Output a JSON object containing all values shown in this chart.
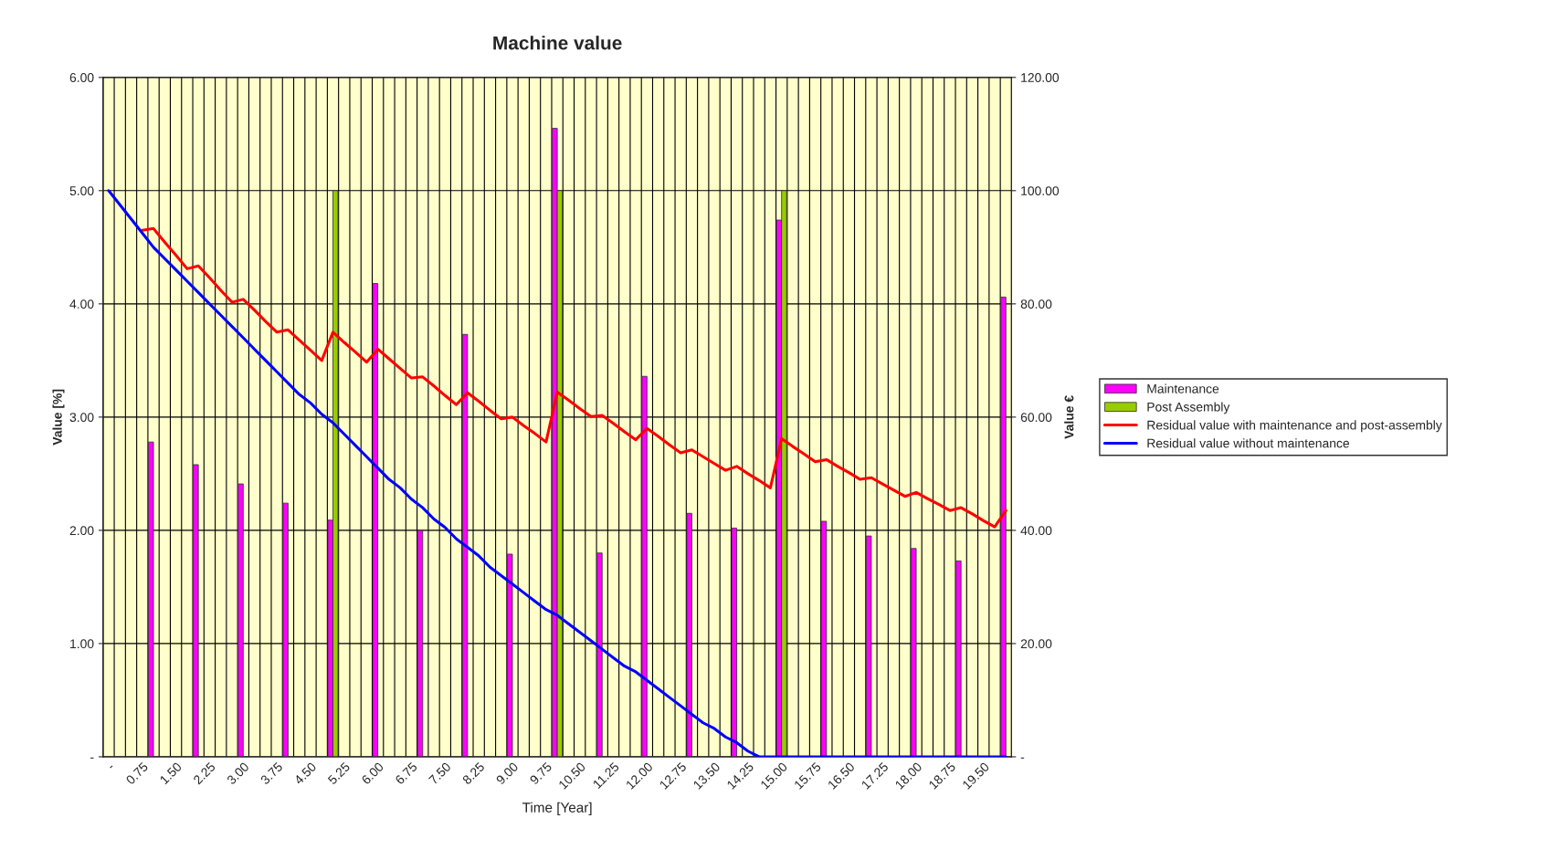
{
  "chart_data": {
    "type": "bar",
    "title": "Machine value",
    "xlabel": "Time [Year]",
    "ylabel": "Value [%]",
    "y2label": "Value €",
    "categories": [
      "-",
      null,
      null,
      "0.75",
      null,
      null,
      "1.50",
      null,
      null,
      "2.25",
      null,
      null,
      "3.00",
      null,
      null,
      "3.75",
      null,
      null,
      "4.50",
      null,
      null,
      "5.25",
      null,
      null,
      "6.00",
      null,
      null,
      "6.75",
      null,
      null,
      "7.50",
      null,
      null,
      "8.25",
      null,
      null,
      "9.00",
      null,
      null,
      "9.75",
      null,
      null,
      "10.50",
      null,
      null,
      "11.25",
      null,
      null,
      "12.00",
      null,
      null,
      "12.75",
      null,
      null,
      "13.50",
      null,
      null,
      "14.25",
      null,
      null,
      "15.00",
      null,
      null,
      "15.75",
      null,
      null,
      "16.50",
      null,
      null,
      "17.25",
      null,
      null,
      "18.00",
      null,
      null,
      "18.75",
      null,
      null,
      "19.50",
      null,
      null
    ],
    "series": [
      {
        "name": "Maintenance",
        "color": "#ff00ff",
        "values": [
          null,
          null,
          null,
          null,
          2.78,
          null,
          null,
          null,
          2.58,
          null,
          null,
          null,
          2.41,
          null,
          null,
          null,
          2.24,
          null,
          null,
          null,
          2.09,
          null,
          null,
          null,
          4.18,
          null,
          null,
          null,
          2.0,
          null,
          null,
          null,
          3.73,
          null,
          null,
          null,
          1.79,
          null,
          null,
          null,
          5.55,
          null,
          null,
          null,
          1.8,
          null,
          null,
          null,
          3.36,
          null,
          null,
          null,
          2.15,
          null,
          null,
          null,
          2.02,
          null,
          null,
          null,
          4.74,
          null,
          null,
          null,
          2.08,
          null,
          null,
          null,
          1.95,
          null,
          null,
          null,
          1.84,
          null,
          null,
          null,
          1.73,
          null,
          null,
          null,
          4.06
        ]
      },
      {
        "name": "Post Assembly",
        "color": "#99cc00",
        "values": [
          null,
          null,
          null,
          null,
          null,
          null,
          null,
          null,
          null,
          null,
          null,
          null,
          null,
          null,
          null,
          null,
          null,
          null,
          null,
          null,
          5.0,
          null,
          null,
          null,
          null,
          null,
          null,
          null,
          null,
          null,
          null,
          null,
          null,
          null,
          null,
          null,
          null,
          null,
          null,
          null,
          5.0,
          null,
          null,
          null,
          null,
          null,
          null,
          null,
          null,
          null,
          null,
          null,
          null,
          null,
          null,
          null,
          null,
          null,
          null,
          null,
          5.0,
          null,
          null,
          null,
          null,
          null,
          null,
          null,
          null,
          null,
          null,
          null,
          null,
          null,
          null,
          null,
          null,
          null,
          null,
          null,
          null
        ]
      },
      {
        "name": "Residual value with maintenance and post-assembly",
        "type": "line",
        "axis": "y2",
        "color": "#ff0000",
        "values": [
          null,
          null,
          null,
          93.0,
          93.3,
          90.9,
          88.6,
          86.2,
          86.7,
          84.6,
          82.4,
          80.3,
          80.8,
          78.9,
          76.9,
          75.0,
          75.4,
          73.6,
          71.8,
          70.0,
          75.0,
          73.2,
          71.5,
          69.7,
          72.0,
          70.3,
          68.6,
          66.9,
          67.1,
          65.5,
          63.8,
          62.2,
          64.3,
          62.8,
          61.2,
          59.7,
          60.0,
          58.5,
          57.1,
          55.6,
          64.4,
          63.0,
          61.5,
          60.1,
          60.3,
          58.9,
          57.4,
          56.0,
          58.0,
          56.6,
          55.1,
          53.7,
          54.2,
          53.0,
          51.8,
          50.6,
          51.3,
          50.0,
          48.8,
          47.5,
          56.2,
          54.8,
          53.5,
          52.1,
          52.5,
          51.3,
          50.2,
          49.0,
          49.3,
          48.2,
          47.1,
          46.0,
          46.7,
          45.6,
          44.6,
          43.5,
          44.0,
          42.9,
          41.7,
          40.6,
          43.5
        ]
      },
      {
        "name": "Residual value without maintenance",
        "type": "line",
        "axis": "y2",
        "color": "#0000ff",
        "values": [
          100,
          97.5,
          95,
          92.5,
          90,
          88,
          86,
          84,
          82,
          80,
          78,
          76,
          74,
          72,
          70,
          68,
          66,
          64,
          62.5,
          60.5,
          59,
          57,
          55,
          53,
          51,
          49,
          47.5,
          45.5,
          44,
          42,
          40.5,
          38.5,
          37,
          35.5,
          33.5,
          32,
          30.5,
          29,
          27.5,
          26,
          25,
          23.5,
          22,
          20.5,
          19,
          17.5,
          16,
          15,
          13.5,
          12,
          10.5,
          9,
          7.5,
          6,
          5,
          3.5,
          2.5,
          1,
          0,
          0,
          0,
          0,
          0,
          0,
          0,
          0,
          0,
          0,
          0,
          0,
          0,
          0,
          0,
          0,
          0,
          0,
          0,
          0,
          0,
          0,
          0
        ]
      }
    ],
    "ylim": [
      0,
      6
    ],
    "yticks": [
      {
        "value": 0,
        "label": "-"
      },
      {
        "value": 1,
        "label": "1.00"
      },
      {
        "value": 2,
        "label": "2.00"
      },
      {
        "value": 3,
        "label": "3.00"
      },
      {
        "value": 4,
        "label": "4.00"
      },
      {
        "value": 5,
        "label": "5.00"
      },
      {
        "value": 6,
        "label": "6.00"
      }
    ],
    "y2lim": [
      0,
      120
    ],
    "y2ticks": [
      {
        "value": 0,
        "label": "-"
      },
      {
        "value": 20,
        "label": "20.00"
      },
      {
        "value": 40,
        "label": "40.00"
      },
      {
        "value": 60,
        "label": "60.00"
      },
      {
        "value": 80,
        "label": "80.00"
      },
      {
        "value": 100,
        "label": "100.00"
      },
      {
        "value": 120,
        "label": "120.00"
      }
    ],
    "grid": true,
    "legend": "right"
  }
}
